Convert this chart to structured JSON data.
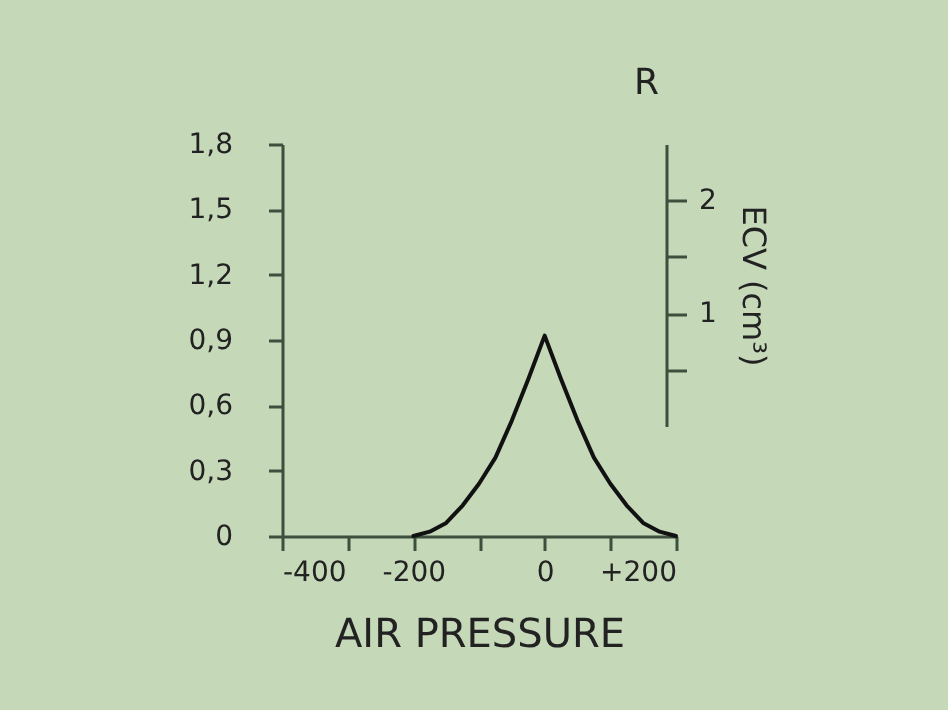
{
  "chart_data": {
    "type": "line",
    "xlabel": "AIR PRESSURE",
    "y2label": "ECV (cm³)",
    "annotations": [
      "R"
    ],
    "x": [
      -200,
      -175,
      -150,
      -125,
      -100,
      -75,
      -50,
      -25,
      0,
      25,
      50,
      75,
      100,
      125,
      150,
      175,
      200
    ],
    "series": [
      {
        "color": "#111111",
        "values": [
          0,
          0.02,
          0.06,
          0.14,
          0.24,
          0.36,
          0.53,
          0.72,
          0.92,
          0.72,
          0.53,
          0.36,
          0.24,
          0.14,
          0.06,
          0.02,
          0
        ]
      }
    ],
    "xlim": [
      -400,
      200
    ],
    "ylim": [
      0,
      1.8
    ],
    "y2lim": [
      0,
      2.5
    ],
    "xticks": [
      -400,
      {
        "value": -300,
        "label": null
      },
      -200,
      {
        "value": -100,
        "label": null
      },
      0,
      {
        "value": 100,
        "label": null
      },
      {
        "value": 200,
        "label": "+200"
      }
    ],
    "yticks": [
      0,
      {
        "value": 0.3,
        "label": "0,3"
      },
      {
        "value": 0.6,
        "label": "0,6"
      },
      {
        "value": 0.9,
        "label": "0,9"
      },
      {
        "value": 1.2,
        "label": "1,2"
      },
      {
        "value": 1.5,
        "label": "1,5"
      },
      {
        "value": 1.8,
        "label": "1,8"
      }
    ],
    "y2ticks": [
      {
        "value": 0.5,
        "label": null
      },
      1,
      {
        "value": 1.5,
        "label": null
      },
      2
    ],
    "grid": false,
    "legend": false,
    "marker": "none",
    "line_style": "solid"
  }
}
